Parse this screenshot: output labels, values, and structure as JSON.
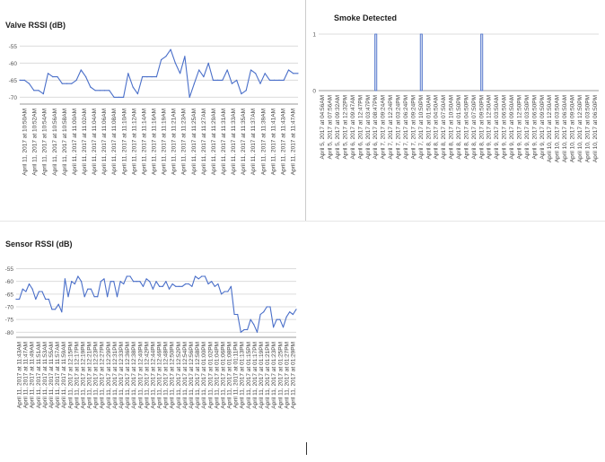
{
  "chart_data": [
    {
      "id": "valve",
      "type": "line",
      "title": "Valve RSSI (dB)",
      "xlabel": "",
      "ylabel": "",
      "ylim": [
        -72,
        -52
      ],
      "y_ticks": [
        -55,
        -60,
        -65,
        -70
      ],
      "grid": true,
      "color": "#4a6fc9",
      "x_labels": [
        "April 11, 2017 at 10:50AM",
        "April 11, 2017 at 10:52AM",
        "April 11, 2017 at 10:54AM",
        "April 11, 2017 at 10:56AM",
        "April 11, 2017 at 10:58AM",
        "April 11, 2017 at 11:00AM",
        "April 11, 2017 at 11:02AM",
        "April 11, 2017 at 11:04AM",
        "April 11, 2017 at 11:06AM",
        "April 11, 2017 at 11:08AM",
        "April 11, 2017 at 11:10AM",
        "April 11, 2017 at 11:12AM",
        "April 11, 2017 at 11:14AM",
        "April 11, 2017 at 11:16AM",
        "April 11, 2017 at 11:19AM",
        "April 11, 2017 at 11:21AM",
        "April 11, 2017 at 11:23AM",
        "April 11, 2017 at 11:25AM",
        "April 11, 2017 at 11:27AM",
        "April 11, 2017 at 11:29AM",
        "April 11, 2017 at 11:31AM",
        "April 11, 2017 at 11:33AM",
        "April 11, 2017 at 11:35AM",
        "April 11, 2017 at 11:37AM",
        "April 11, 2017 at 11:39AM",
        "April 11, 2017 at 11:41AM",
        "April 11, 2017 at 11:43AM",
        "April 11, 2017 at 11:47AM"
      ],
      "values": [
        -65,
        -65,
        -66,
        -68,
        -68,
        -69,
        -63,
        -64,
        -64,
        -66,
        -66,
        -66,
        -65,
        -62,
        -64,
        -67,
        -68,
        -68,
        -68,
        -68,
        -70,
        -70,
        -70,
        -63,
        -67,
        -69,
        -64,
        -64,
        -64,
        -64,
        -59,
        -58,
        -56,
        -60,
        -63,
        -58,
        -70,
        -66,
        -62,
        -64,
        -60,
        -65,
        -65,
        -65,
        -62,
        -66,
        -65,
        -69,
        -68,
        -62,
        -63,
        -66,
        -63,
        -65,
        -65,
        -65,
        -65,
        -62,
        -63,
        -63
      ]
    },
    {
      "id": "smoke",
      "type": "bar",
      "title": "Smoke Detected",
      "xlabel": "",
      "ylabel": "",
      "ylim": [
        0,
        1
      ],
      "y_ticks": [
        0,
        1
      ],
      "grid": true,
      "color": "#4a6fc9",
      "x_labels": [
        "April 5, 2017 at 04:56AM",
        "April 5, 2017 at 07:56AM",
        "April 5, 2017 at 09:32AM",
        "April 5, 2017 at 12:32PM",
        "April 6, 2017 at 09:47AM",
        "April 6, 2017 at 12:47PM",
        "April 6, 2017 at 03:47PM",
        "April 6, 2017 at 08:47PM",
        "April 7, 2017 at 09:24AM",
        "April 7, 2017 at 12:24PM",
        "April 7, 2017 at 03:24PM",
        "April 7, 2017 at 06:24PM",
        "April 7, 2017 at 09:24PM",
        "April 7, 2017 at 10:50PM",
        "April 8, 2017 at 01:50AM",
        "April 8, 2017 at 04:50AM",
        "April 8, 2017 at 07:50AM",
        "April 8, 2017 at 10:50AM",
        "April 8, 2017 at 01:50PM",
        "April 8, 2017 at 04:50PM",
        "April 8, 2017 at 07:50PM",
        "April 8, 2017 at 09:50PM",
        "April 9, 2017 at 12:50AM",
        "April 9, 2017 at 03:50AM",
        "April 9, 2017 at 06:50AM",
        "April 9, 2017 at 09:50AM",
        "April 9, 2017 at 12:50PM",
        "April 9, 2017 at 03:50PM",
        "April 9, 2017 at 06:50PM",
        "April 9, 2017 at 09:50PM",
        "April 10, 2017 at 12:50AM",
        "April 10, 2017 at 03:50AM",
        "April 10, 2017 at 06:50AM",
        "April 10, 2017 at 09:50AM",
        "April 10, 2017 at 12:50PM",
        "April 10, 2017 at 03:50PM",
        "April 10, 2017 at 06:50PM"
      ],
      "values": [
        0,
        0,
        0,
        0,
        0,
        0,
        0,
        1,
        0,
        0,
        0,
        0,
        0,
        1,
        0,
        0,
        0,
        0,
        0,
        0,
        0,
        1,
        0,
        0,
        0,
        0,
        0,
        0,
        0,
        0,
        0,
        0,
        0,
        0,
        0,
        0,
        0
      ]
    },
    {
      "id": "sensor",
      "type": "line",
      "title": "Sensor RSSI (dB)",
      "xlabel": "",
      "ylabel": "",
      "ylim": [
        -82,
        -52
      ],
      "y_ticks": [
        -55,
        -60,
        -65,
        -70,
        -75,
        -80
      ],
      "grid": true,
      "color": "#4a6fc9",
      "x_labels": [
        "April 11, 2017 at 11:43AM",
        "April 11, 2017 at 11:47AM",
        "April 11, 2017 at 11:49AM",
        "April 11, 2017 at 11:51AM",
        "April 11, 2017 at 11:53AM",
        "April 11, 2017 at 11:55AM",
        "April 11, 2017 at 11:57AM",
        "April 11, 2017 at 11:59AM",
        "April 11, 2017 at 12:15PM",
        "April 11, 2017 at 12:17PM",
        "April 11, 2017 at 12:19PM",
        "April 11, 2017 at 12:21PM",
        "April 11, 2017 at 12:23PM",
        "April 11, 2017 at 12:27PM",
        "April 11, 2017 at 12:29PM",
        "April 11, 2017 at 12:31PM",
        "April 11, 2017 at 12:33PM",
        "April 11, 2017 at 12:36PM",
        "April 11, 2017 at 12:38PM",
        "April 11, 2017 at 12:40PM",
        "April 11, 2017 at 12:42PM",
        "April 11, 2017 at 12:44PM",
        "April 11, 2017 at 12:46PM",
        "April 11, 2017 at 12:48PM",
        "April 11, 2017 at 12:50PM",
        "April 11, 2017 at 12:52PM",
        "April 11, 2017 at 12:54PM",
        "April 11, 2017 at 12:56PM",
        "April 11, 2017 at 12:58PM",
        "April 11, 2017 at 01:00PM",
        "April 11, 2017 at 01:02PM",
        "April 11, 2017 at 01:04PM",
        "April 11, 2017 at 01:06PM",
        "April 11, 2017 at 01:08PM",
        "April 11, 2017 at 01:11PM",
        "April 11, 2017 at 01:13PM",
        "April 11, 2017 at 01:15PM",
        "April 11, 2017 at 01:17PM",
        "April 11, 2017 at 01:19PM",
        "April 11, 2017 at 01:21PM",
        "April 11, 2017 at 01:23PM",
        "April 11, 2017 at 01:25PM",
        "April 11, 2017 at 01:27PM",
        "April 11, 2017 at 01:29PM"
      ],
      "values": [
        -67,
        -67,
        -63,
        -64,
        -61,
        -63,
        -67,
        -64,
        -64,
        -67,
        -67,
        -71,
        -71,
        -69,
        -72,
        -59,
        -66,
        -60,
        -61,
        -58,
        -60,
        -66,
        -63,
        -63,
        -66,
        -66,
        -60,
        -59,
        -66,
        -60,
        -60,
        -66,
        -60,
        -61,
        -58,
        -58,
        -60,
        -60,
        -60,
        -62,
        -59,
        -60,
        -63,
        -60,
        -62,
        -62,
        -60,
        -63,
        -61,
        -62,
        -62,
        -62,
        -61,
        -61,
        -62,
        -58,
        -59,
        -58,
        -58,
        -61,
        -60,
        -62,
        -61,
        -65,
        -64,
        -64,
        -62,
        -73,
        -73,
        -80,
        -79,
        -79,
        -75,
        -77,
        -80,
        -73,
        -72,
        -70,
        -70,
        -78,
        -75,
        -75,
        -78,
        -74,
        -72,
        -73,
        -71
      ]
    }
  ]
}
